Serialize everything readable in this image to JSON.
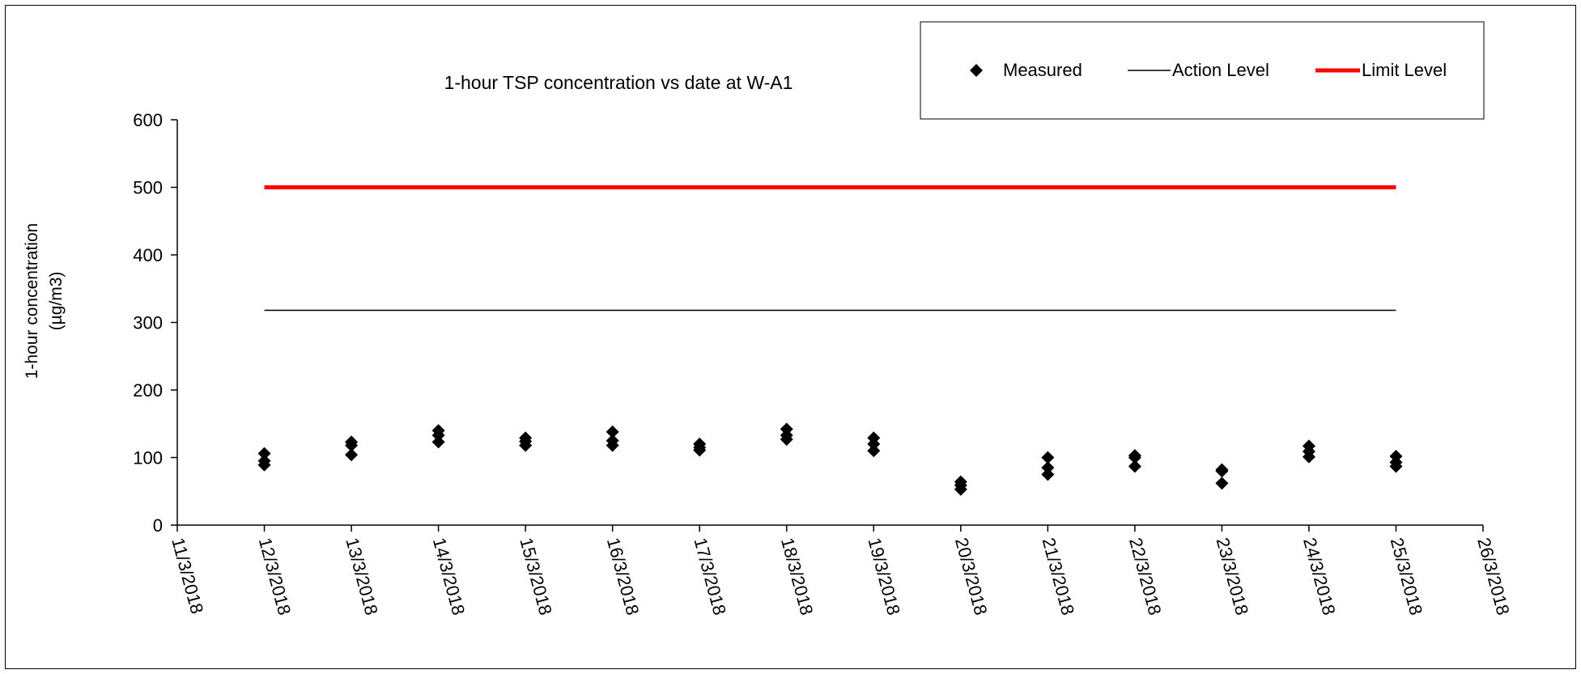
{
  "chart_data": {
    "type": "scatter",
    "title": "1-hour TSP concentration vs date at W-A1",
    "ylabel_line1": "1-hour concentration",
    "ylabel_line2": "(µg/m3)",
    "xlabel": "",
    "ylim": [
      0,
      600
    ],
    "yticks": [
      0,
      100,
      200,
      300,
      400,
      500,
      600
    ],
    "xticks": [
      "11/3/2018",
      "12/3/2018",
      "13/3/2018",
      "14/3/2018",
      "15/3/2018",
      "16/3/2018",
      "17/3/2018",
      "18/3/2018",
      "19/3/2018",
      "20/3/2018",
      "21/3/2018",
      "22/3/2018",
      "23/3/2018",
      "24/3/2018",
      "25/3/2018",
      "26/3/2018"
    ],
    "grid": false,
    "legend_position": "top-right",
    "series": [
      {
        "name": "Measured",
        "kind": "scatter",
        "color": "#000000",
        "points": [
          {
            "x": "12/3/2018",
            "y": [
              106,
              95,
              89
            ]
          },
          {
            "x": "13/3/2018",
            "y": [
              123,
              118,
              104
            ]
          },
          {
            "x": "14/3/2018",
            "y": [
              140,
              133,
              123
            ]
          },
          {
            "x": "15/3/2018",
            "y": [
              129,
              124,
              118
            ]
          },
          {
            "x": "16/3/2018",
            "y": [
              138,
              125,
              118
            ]
          },
          {
            "x": "17/3/2018",
            "y": [
              120,
              115,
              111
            ]
          },
          {
            "x": "18/3/2018",
            "y": [
              142,
              133,
              127
            ]
          },
          {
            "x": "19/3/2018",
            "y": [
              129,
              120,
              110
            ]
          },
          {
            "x": "20/3/2018",
            "y": [
              64,
              59,
              53
            ]
          },
          {
            "x": "21/3/2018",
            "y": [
              100,
              85,
              75
            ]
          },
          {
            "x": "22/3/2018",
            "y": [
              103,
              100,
              87
            ]
          },
          {
            "x": "23/3/2018",
            "y": [
              82,
              80,
              62
            ]
          },
          {
            "x": "24/3/2018",
            "y": [
              117,
              109,
              101
            ]
          },
          {
            "x": "25/3/2018",
            "y": [
              102,
              93,
              87
            ]
          }
        ]
      },
      {
        "name": "Action Level",
        "kind": "line",
        "color": "#000000",
        "x_range": [
          "12/3/2018",
          "25/3/2018"
        ],
        "value": 318
      },
      {
        "name": "Limit Level",
        "kind": "line",
        "color": "#ff0000",
        "x_range": [
          "12/3/2018",
          "25/3/2018"
        ],
        "value": 500
      }
    ]
  }
}
